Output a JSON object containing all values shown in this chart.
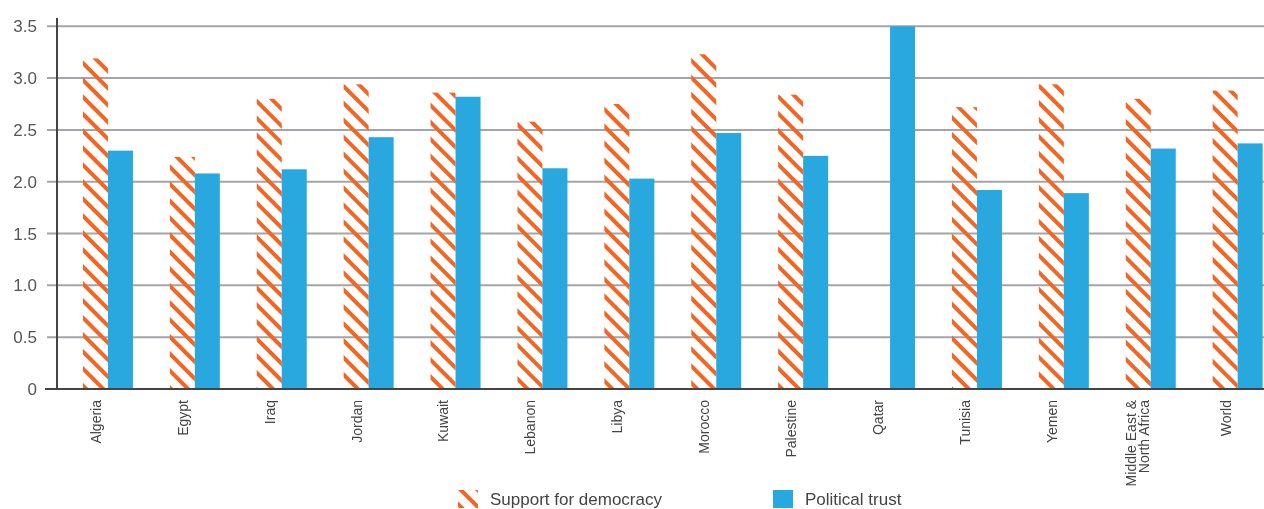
{
  "chart_data": {
    "type": "bar",
    "categories": [
      "Algeria",
      "Egypt",
      "Iraq",
      "Jordan",
      "Kuwait",
      "Lebanon",
      "Libya",
      "Morocco",
      "Palestine",
      "Qatar",
      "Tunisia",
      "Yemen",
      "Middle East & North Africa",
      "World"
    ],
    "series": [
      {
        "name": "Support for democracy",
        "color": "#f26522",
        "values": [
          3.19,
          2.24,
          2.8,
          2.94,
          2.86,
          2.58,
          2.75,
          3.23,
          2.84,
          null,
          2.72,
          2.94,
          2.8,
          2.88
        ]
      },
      {
        "name": "Political trust",
        "color": "#29a8e0",
        "values": [
          2.3,
          2.08,
          2.12,
          2.43,
          2.82,
          2.13,
          2.03,
          2.47,
          2.25,
          3.5,
          1.92,
          1.89,
          2.32,
          2.37
        ]
      }
    ],
    "ylim": [
      0,
      3.58
    ],
    "yticks": [
      0,
      {
        "value": 0.5,
        "label": "0.5"
      },
      {
        "value": 1,
        "label": "1.0"
      },
      {
        "value": 1.5,
        "label": "1.5"
      },
      {
        "value": 2,
        "label": "2.0"
      },
      {
        "value": 2.5,
        "label": "2.5"
      },
      {
        "value": 3,
        "label": "3.0"
      },
      {
        "value": 3.5,
        "label": "3.5"
      }
    ],
    "grid": "y",
    "legend": "bottom"
  }
}
